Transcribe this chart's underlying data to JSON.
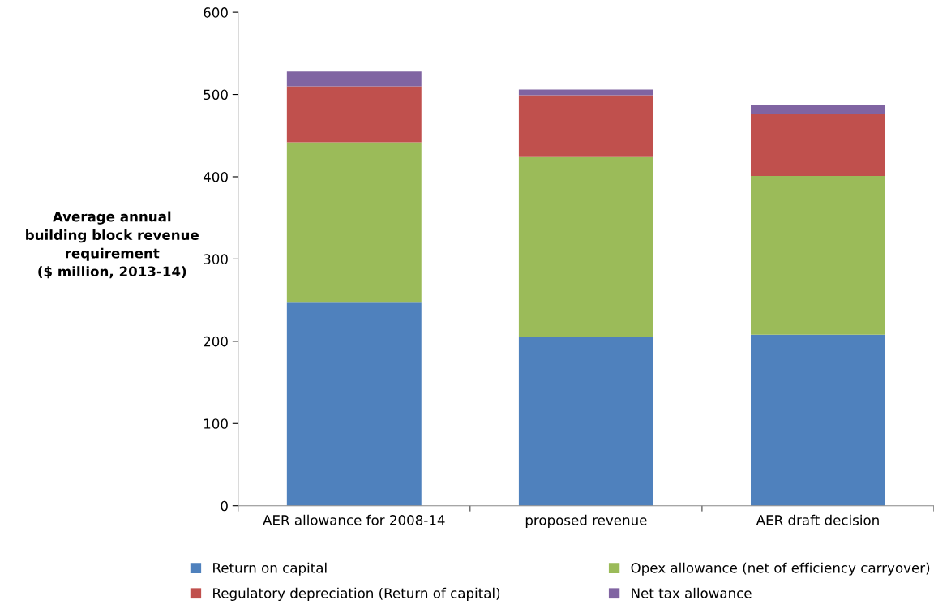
{
  "chart_data": {
    "type": "bar",
    "stacked": true,
    "ylabel": "Average annual\nbuilding block revenue\nrequirement\n($ million, 2013-14)",
    "categories": [
      "AER allowance for 2008-14",
      "proposed revenue",
      "AER draft decision"
    ],
    "series": [
      {
        "name": "Return on capital",
        "color": "#4f81bd",
        "values": [
          247,
          205,
          208
        ]
      },
      {
        "name": "Opex allowance (net of efficiency carryover)",
        "color": "#9bbb59",
        "values": [
          195,
          219,
          193
        ]
      },
      {
        "name": "Regulatory depreciation (Return of capital)",
        "color": "#c0504d",
        "values": [
          68,
          75,
          76
        ]
      },
      {
        "name": "Net tax allowance",
        "color": "#8064a2",
        "values": [
          18,
          7,
          10
        ]
      }
    ],
    "ylim": [
      0,
      600
    ],
    "yticks": [
      0,
      100,
      200,
      300,
      400,
      500,
      600
    ],
    "grid": false,
    "legend": "bottom"
  }
}
